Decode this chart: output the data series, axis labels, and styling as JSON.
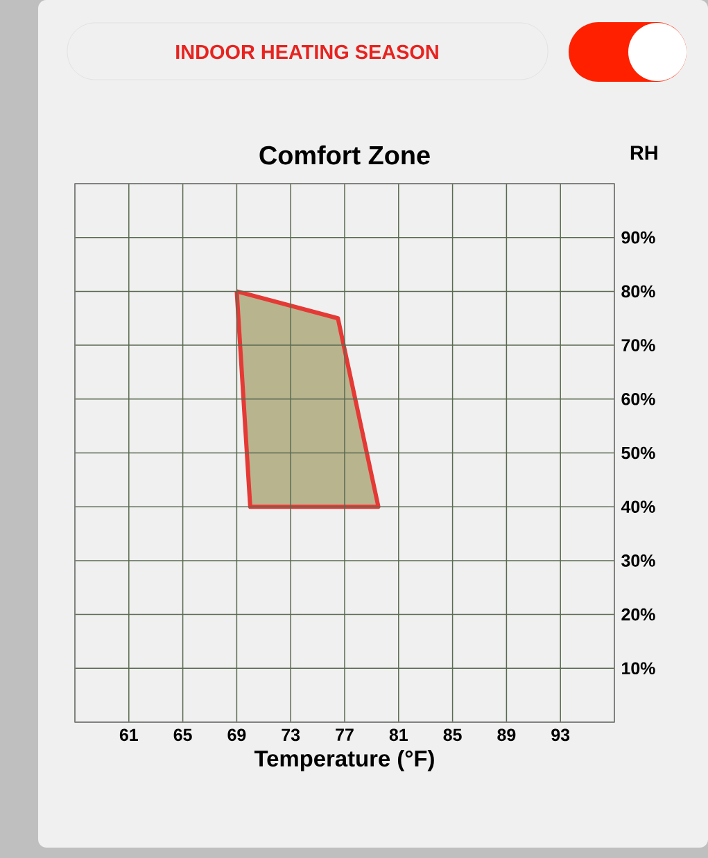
{
  "chart_data": {
    "type": "area",
    "title": "Comfort Zone",
    "xlabel": "Temperature (°F)",
    "ylabel": "RH",
    "annotations": [
      "INDOOR HEATING SEASON"
    ],
    "series": [
      {
        "color": "#e53935",
        "x": [
          69,
          76.5,
          79.5,
          70,
          69
        ],
        "values": [
          80,
          75,
          40,
          40,
          80
        ]
      }
    ],
    "xlim": [
      57,
      97
    ],
    "ylim": [
      0,
      100
    ],
    "xticks": [
      {
        "value": 57,
        "label": null
      },
      61,
      65,
      69,
      73,
      77,
      81,
      85,
      89,
      93,
      {
        "value": 97,
        "label": null
      }
    ],
    "yticks": [
      {
        "value": 0,
        "label": null
      },
      {
        "value": 10,
        "label": "10%"
      },
      {
        "value": 20,
        "label": "20%"
      },
      {
        "value": 30,
        "label": "30%"
      },
      {
        "value": 40,
        "label": "40%"
      },
      {
        "value": 50,
        "label": "50%"
      },
      {
        "value": 60,
        "label": "60%"
      },
      {
        "value": 70,
        "label": "70%"
      },
      {
        "value": 80,
        "label": "80%"
      },
      {
        "value": 90,
        "label": "90%"
      },
      {
        "value": 100,
        "label": null
      }
    ],
    "grid": true
  }
}
